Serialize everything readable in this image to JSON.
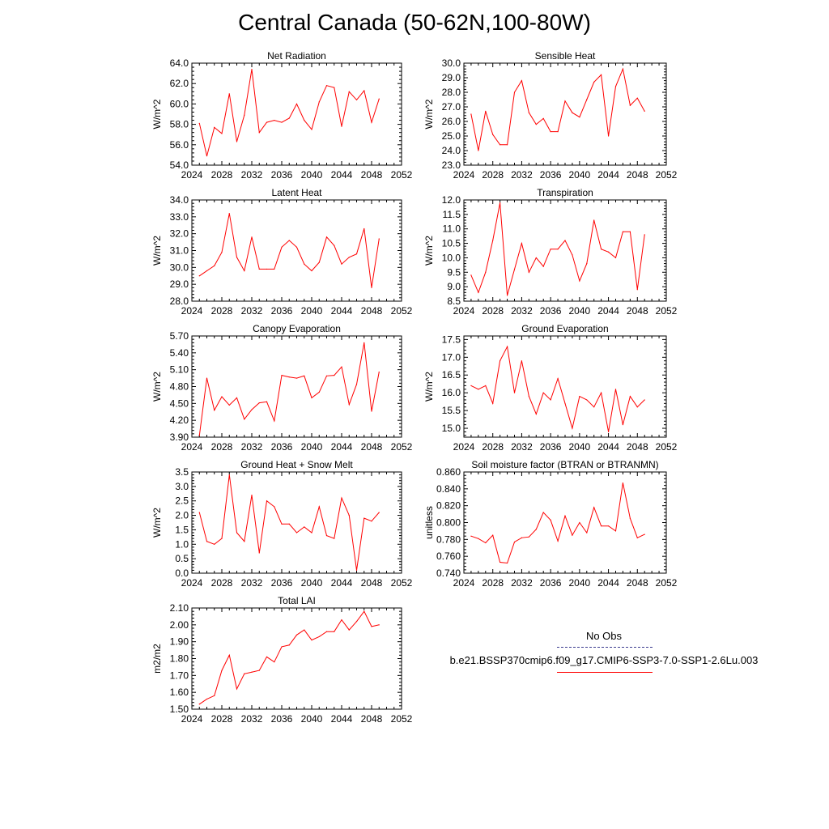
{
  "title": "Central Canada (50-62N,100-80W)",
  "colors": {
    "model": "#ff0000",
    "obs": "#3b3b8f",
    "axis": "#000000"
  },
  "legend": {
    "obs_label": "No Obs",
    "run_label": "b.e21.BSSP370cmip6.f09_g17.CMIP6-SSP3-7.0-SSP1-2.6Lu.003"
  },
  "chart_data": [
    {
      "type": "line",
      "title": "Net Radiation",
      "ylabel": "W/m^2",
      "xlim": [
        2024,
        2052
      ],
      "xticks": [
        2024,
        2028,
        2032,
        2036,
        2040,
        2044,
        2048,
        2052
      ],
      "ylim": [
        54,
        64
      ],
      "yticks": [
        "54.0",
        "56.0",
        "58.0",
        "60.0",
        "62.0",
        "64.0"
      ],
      "x": [
        2025,
        2026,
        2027,
        2028,
        2029,
        2030,
        2031,
        2032,
        2033,
        2034,
        2035,
        2036,
        2037,
        2038,
        2039,
        2040,
        2041,
        2042,
        2043,
        2044,
        2045,
        2046,
        2047,
        2048,
        2049
      ],
      "values": [
        58.1,
        54.9,
        57.7,
        57.1,
        61.0,
        56.3,
        58.9,
        63.4,
        57.2,
        58.2,
        58.4,
        58.2,
        58.6,
        60.0,
        58.4,
        57.5,
        60.2,
        61.8,
        61.6,
        57.8,
        61.2,
        60.4,
        61.3,
        58.2,
        60.5
      ]
    },
    {
      "type": "line",
      "title": "Sensible Heat",
      "ylabel": "W/m^2",
      "xlim": [
        2024,
        2052
      ],
      "xticks": [
        2024,
        2028,
        2032,
        2036,
        2040,
        2044,
        2048,
        2052
      ],
      "ylim": [
        23,
        30
      ],
      "yticks": [
        "23.0",
        "24.0",
        "25.0",
        "26.0",
        "27.0",
        "28.0",
        "29.0",
        "30.0"
      ],
      "x": [
        2025,
        2026,
        2027,
        2028,
        2029,
        2030,
        2031,
        2032,
        2033,
        2034,
        2035,
        2036,
        2037,
        2038,
        2039,
        2040,
        2041,
        2042,
        2043,
        2044,
        2045,
        2046,
        2047,
        2048,
        2049
      ],
      "values": [
        26.5,
        24.0,
        26.7,
        25.1,
        24.4,
        24.4,
        28.0,
        28.8,
        26.6,
        25.8,
        26.2,
        25.3,
        25.3,
        27.4,
        26.6,
        26.3,
        27.5,
        28.7,
        29.2,
        25.0,
        28.4,
        29.6,
        27.1,
        27.6,
        26.7
      ]
    },
    {
      "type": "line",
      "title": "Latent Heat",
      "ylabel": "W/m^2",
      "xlim": [
        2024,
        2052
      ],
      "xticks": [
        2024,
        2028,
        2032,
        2036,
        2040,
        2044,
        2048,
        2052
      ],
      "ylim": [
        28,
        34
      ],
      "yticks": [
        "28.0",
        "29.0",
        "30.0",
        "31.0",
        "32.0",
        "33.0",
        "34.0"
      ],
      "x": [
        2025,
        2026,
        2027,
        2028,
        2029,
        2030,
        2031,
        2032,
        2033,
        2034,
        2035,
        2036,
        2037,
        2038,
        2039,
        2040,
        2041,
        2042,
        2043,
        2044,
        2045,
        2046,
        2047,
        2048,
        2049
      ],
      "values": [
        29.5,
        29.8,
        30.1,
        30.9,
        33.2,
        30.6,
        29.8,
        31.8,
        29.9,
        29.9,
        29.9,
        31.2,
        31.6,
        31.2,
        30.2,
        29.8,
        30.3,
        31.8,
        31.3,
        30.2,
        30.6,
        30.8,
        32.3,
        28.8,
        31.7
      ]
    },
    {
      "type": "line",
      "title": "Transpiration",
      "ylabel": "W/m^2",
      "xlim": [
        2024,
        2052
      ],
      "xticks": [
        2024,
        2028,
        2032,
        2036,
        2040,
        2044,
        2048,
        2052
      ],
      "ylim": [
        8.5,
        12.0
      ],
      "yticks": [
        "8.5",
        "9.0",
        "9.5",
        "10.0",
        "10.5",
        "11.0",
        "11.5",
        "12.0"
      ],
      "x": [
        2025,
        2026,
        2027,
        2028,
        2029,
        2030,
        2031,
        2032,
        2033,
        2034,
        2035,
        2036,
        2037,
        2038,
        2039,
        2040,
        2041,
        2042,
        2043,
        2044,
        2045,
        2046,
        2047,
        2048,
        2049
      ],
      "values": [
        9.4,
        8.8,
        9.5,
        10.6,
        11.9,
        8.7,
        9.6,
        10.5,
        9.5,
        10.0,
        9.7,
        10.3,
        10.3,
        10.6,
        10.1,
        9.2,
        9.8,
        11.3,
        10.3,
        10.2,
        10.0,
        10.9,
        10.9,
        8.9,
        10.8
      ]
    },
    {
      "type": "line",
      "title": "Canopy Evaporation",
      "ylabel": "W/m^2",
      "xlim": [
        2024,
        2052
      ],
      "xticks": [
        2024,
        2028,
        2032,
        2036,
        2040,
        2044,
        2048,
        2052
      ],
      "ylim": [
        3.9,
        5.7
      ],
      "yticks": [
        "3.90",
        "4.20",
        "4.50",
        "4.80",
        "5.10",
        "5.40",
        "5.70"
      ],
      "x": [
        2025,
        2026,
        2027,
        2028,
        2029,
        2030,
        2031,
        2032,
        2033,
        2034,
        2035,
        2036,
        2037,
        2038,
        2039,
        2040,
        2041,
        2042,
        2043,
        2044,
        2045,
        2046,
        2047,
        2048,
        2049
      ],
      "values": [
        3.93,
        4.95,
        4.38,
        4.62,
        4.47,
        4.6,
        4.22,
        4.39,
        4.51,
        4.53,
        4.19,
        5.0,
        4.97,
        4.95,
        4.99,
        4.6,
        4.7,
        4.99,
        5.0,
        5.15,
        4.48,
        4.84,
        5.58,
        4.36,
        5.06
      ]
    },
    {
      "type": "line",
      "title": "Ground Evaporation",
      "ylabel": "W/m^2",
      "xlim": [
        2024,
        2052
      ],
      "xticks": [
        2024,
        2028,
        2032,
        2036,
        2040,
        2044,
        2048,
        2052
      ],
      "ylim": [
        14.75,
        17.6
      ],
      "yticks": [
        "15.0",
        "15.5",
        "16.0",
        "16.5",
        "17.0",
        "17.5"
      ],
      "x": [
        2025,
        2026,
        2027,
        2028,
        2029,
        2030,
        2031,
        2032,
        2033,
        2034,
        2035,
        2036,
        2037,
        2038,
        2039,
        2040,
        2041,
        2042,
        2043,
        2044,
        2045,
        2046,
        2047,
        2048,
        2049
      ],
      "values": [
        16.2,
        16.1,
        16.2,
        15.7,
        16.9,
        17.3,
        16.0,
        16.9,
        15.9,
        15.4,
        16.0,
        15.8,
        16.4,
        15.7,
        15.0,
        15.9,
        15.8,
        15.6,
        16.0,
        14.9,
        16.1,
        15.1,
        15.9,
        15.6,
        15.8
      ]
    },
    {
      "type": "line",
      "title": "Ground Heat + Snow Melt",
      "ylabel": "W/m^2",
      "xlim": [
        2024,
        2052
      ],
      "xticks": [
        2024,
        2028,
        2032,
        2036,
        2040,
        2044,
        2048,
        2052
      ],
      "ylim": [
        0,
        3.5
      ],
      "yticks": [
        "0.0",
        "0.5",
        "1.0",
        "1.5",
        "2.0",
        "2.5",
        "3.0",
        "3.5"
      ],
      "x": [
        2025,
        2026,
        2027,
        2028,
        2029,
        2030,
        2031,
        2032,
        2033,
        2034,
        2035,
        2036,
        2037,
        2038,
        2039,
        2040,
        2041,
        2042,
        2043,
        2044,
        2045,
        2046,
        2047,
        2048,
        2049
      ],
      "values": [
        2.1,
        1.1,
        1.0,
        1.2,
        3.4,
        1.4,
        1.1,
        2.7,
        0.7,
        2.5,
        2.3,
        1.7,
        1.7,
        1.4,
        1.6,
        1.4,
        2.3,
        1.3,
        1.2,
        2.6,
        2.0,
        0.1,
        1.9,
        1.8,
        2.1
      ]
    },
    {
      "type": "line",
      "title": "Soil moisture factor (BTRAN or BTRANMN)",
      "ylabel": "unitless",
      "xlim": [
        2024,
        2052
      ],
      "xticks": [
        2024,
        2028,
        2032,
        2036,
        2040,
        2044,
        2048,
        2052
      ],
      "ylim": [
        0.74,
        0.86
      ],
      "yticks": [
        "0.740",
        "0.760",
        "0.780",
        "0.800",
        "0.820",
        "0.840",
        "0.860"
      ],
      "x": [
        2025,
        2026,
        2027,
        2028,
        2029,
        2030,
        2031,
        2032,
        2033,
        2034,
        2035,
        2036,
        2037,
        2038,
        2039,
        2040,
        2041,
        2042,
        2043,
        2044,
        2045,
        2046,
        2047,
        2048,
        2049
      ],
      "values": [
        0.784,
        0.781,
        0.776,
        0.785,
        0.753,
        0.752,
        0.777,
        0.782,
        0.783,
        0.792,
        0.812,
        0.803,
        0.778,
        0.808,
        0.785,
        0.8,
        0.788,
        0.818,
        0.796,
        0.796,
        0.79,
        0.847,
        0.805,
        0.782,
        0.786
      ]
    },
    {
      "type": "line",
      "title": "Total LAI",
      "ylabel": "m2/m2",
      "xlim": [
        2024,
        2052
      ],
      "xticks": [
        2024,
        2028,
        2032,
        2036,
        2040,
        2044,
        2048,
        2052
      ],
      "ylim": [
        1.5,
        2.1
      ],
      "yticks": [
        "1.50",
        "1.60",
        "1.70",
        "1.80",
        "1.90",
        "2.00",
        "2.10"
      ],
      "x": [
        2025,
        2026,
        2027,
        2028,
        2029,
        2030,
        2031,
        2032,
        2033,
        2034,
        2035,
        2036,
        2037,
        2038,
        2039,
        2040,
        2041,
        2042,
        2043,
        2044,
        2045,
        2046,
        2047,
        2048,
        2049
      ],
      "values": [
        1.53,
        1.56,
        1.58,
        1.73,
        1.82,
        1.62,
        1.71,
        1.72,
        1.73,
        1.81,
        1.78,
        1.87,
        1.88,
        1.94,
        1.97,
        1.91,
        1.93,
        1.96,
        1.96,
        2.03,
        1.97,
        2.02,
        2.08,
        1.99,
        2.0
      ]
    }
  ]
}
